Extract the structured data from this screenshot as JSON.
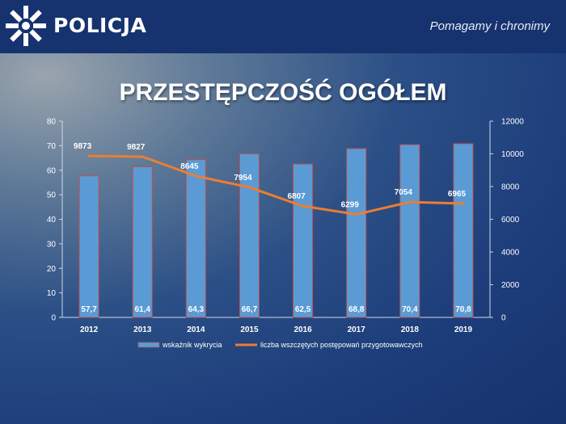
{
  "header": {
    "brand": "POLICJA",
    "tagline": "Pomagamy i chronimy",
    "logo_icon": "police-star-icon"
  },
  "colors": {
    "header_bg": "#16336f",
    "bar_fill": "#5b9bd5",
    "bar_edge": "#c0504d",
    "line": "#ed7d31"
  },
  "chart_data": {
    "type": "bar+line",
    "title": "PRZESTĘPCZOŚĆ OGÓŁEM",
    "categories": [
      "2012",
      "2013",
      "2014",
      "2015",
      "2016",
      "2017",
      "2018",
      "2019"
    ],
    "series": [
      {
        "name": "wskaźnik wykrycia",
        "type": "bar",
        "axis": "left",
        "values": [
          57.7,
          61.4,
          64.3,
          66.7,
          62.5,
          68.8,
          70.4,
          70.8
        ],
        "labels": [
          "57,7",
          "61,4",
          "64,3",
          "66,7",
          "62,5",
          "68,8",
          "70,4",
          "70,8"
        ]
      },
      {
        "name": "liczba wszczętych postępowań przygotowawczych",
        "type": "line",
        "axis": "right",
        "values": [
          9873,
          9827,
          8645,
          7954,
          6807,
          6299,
          7054,
          6965
        ],
        "labels": [
          "9873",
          "9827",
          "8645",
          "7954",
          "6807",
          "6299",
          "7054",
          "6965"
        ]
      }
    ],
    "left_axis": {
      "min": 0,
      "max": 80,
      "ticks": [
        "0",
        "10",
        "20",
        "30",
        "40",
        "50",
        "60",
        "70",
        "80"
      ]
    },
    "right_axis": {
      "min": 0,
      "max": 12000,
      "ticks": [
        "0",
        "2000",
        "4000",
        "6000",
        "8000",
        "10000",
        "12000"
      ]
    },
    "legend_position": "bottom"
  }
}
